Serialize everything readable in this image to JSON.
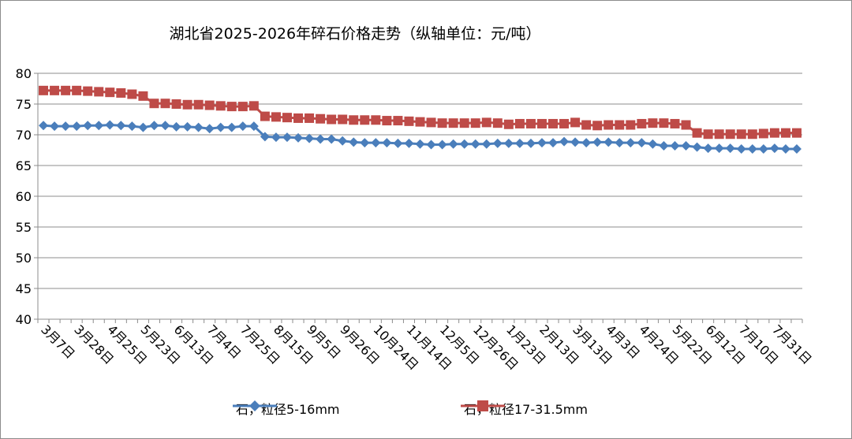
{
  "chart_data": {
    "type": "line",
    "title": "湖北省2025-2026年碎石价格走势（纵轴单位：元/吨）",
    "xlabel": "",
    "ylabel": "",
    "ylim": [
      40,
      80
    ],
    "yticks": [
      40,
      45,
      50,
      55,
      60,
      65,
      70,
      75,
      80
    ],
    "grid": true,
    "legend": "bottom",
    "x_tick_labels": [
      "3月7日",
      "3月28日",
      "4月25日",
      "5月23日",
      "6月13日",
      "7月4日",
      "7月25日",
      "8月15日",
      "9月5日",
      "9月26日",
      "10月24日",
      "11月14日",
      "12月5日",
      "12月26日",
      "1月23日",
      "2月13日",
      "3月13日",
      "4月3日",
      "4月24日",
      "5月22日",
      "6月12日",
      "7月10日",
      "7月31日"
    ],
    "series": [
      {
        "name": "石，粒径5-16mm",
        "color": "#4a7ebb",
        "marker": "diamond",
        "values": [
          71.5,
          71.4,
          71.4,
          71.4,
          71.5,
          71.5,
          71.6,
          71.5,
          71.4,
          71.2,
          71.5,
          71.5,
          71.3,
          71.3,
          71.2,
          71.0,
          71.2,
          71.2,
          71.4,
          71.4,
          69.7,
          69.6,
          69.6,
          69.5,
          69.4,
          69.3,
          69.3,
          69.0,
          68.8,
          68.7,
          68.7,
          68.7,
          68.6,
          68.6,
          68.5,
          68.4,
          68.4,
          68.5,
          68.5,
          68.5,
          68.5,
          68.6,
          68.6,
          68.6,
          68.6,
          68.7,
          68.7,
          68.9,
          68.8,
          68.7,
          68.8,
          68.8,
          68.7,
          68.7,
          68.7,
          68.5,
          68.2,
          68.2,
          68.2,
          68.0,
          67.8,
          67.8,
          67.8,
          67.7,
          67.7,
          67.7,
          67.8,
          67.7,
          67.7
        ]
      },
      {
        "name": "石，粒径17-31.5mm",
        "color": "#be4b48",
        "marker": "square",
        "values": [
          77.2,
          77.2,
          77.2,
          77.2,
          77.1,
          77.0,
          76.9,
          76.8,
          76.6,
          76.3,
          75.1,
          75.1,
          75.0,
          74.9,
          74.9,
          74.8,
          74.7,
          74.6,
          74.6,
          74.7,
          73.0,
          72.9,
          72.8,
          72.7,
          72.7,
          72.6,
          72.5,
          72.5,
          72.4,
          72.4,
          72.4,
          72.3,
          72.3,
          72.2,
          72.1,
          72.0,
          71.9,
          71.9,
          71.9,
          71.9,
          72.0,
          71.9,
          71.7,
          71.8,
          71.8,
          71.8,
          71.8,
          71.8,
          72.0,
          71.6,
          71.5,
          71.6,
          71.6,
          71.6,
          71.8,
          71.9,
          71.9,
          71.8,
          71.6,
          70.3,
          70.1,
          70.1,
          70.1,
          70.1,
          70.1,
          70.2,
          70.3,
          70.3,
          70.3
        ]
      }
    ]
  }
}
